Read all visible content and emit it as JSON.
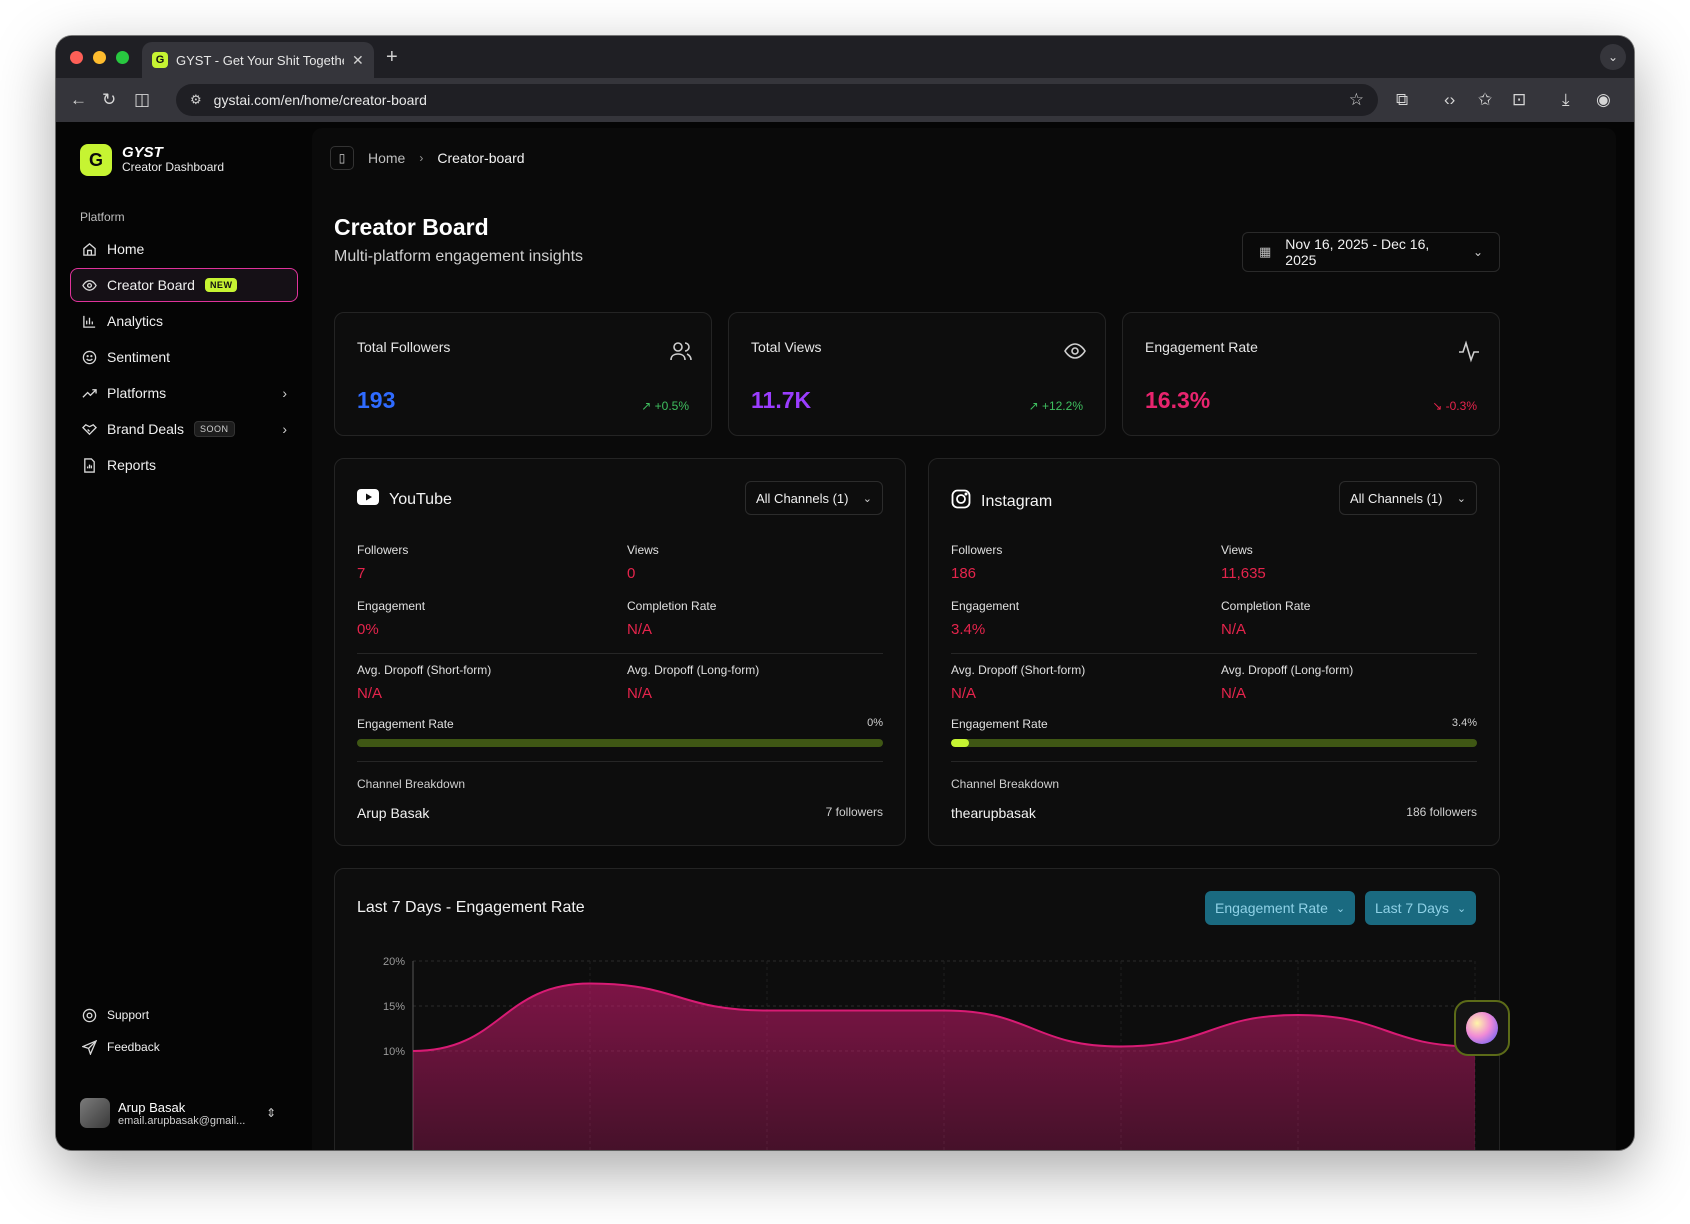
{
  "browser": {
    "tab_title": "GYST - Get Your Shit Togethe",
    "tab_favicon": "G",
    "url": "gystai.com/en/home/creator-board"
  },
  "sidebar": {
    "brand_name": "GYST",
    "brand_sub": "Creator Dashboard",
    "section_label": "Platform",
    "items": [
      {
        "label": "Home",
        "icon": "home-icon"
      },
      {
        "label": "Creator Board",
        "icon": "eye-icon",
        "badge": "NEW"
      },
      {
        "label": "Analytics",
        "icon": "bar-chart-icon"
      },
      {
        "label": "Sentiment",
        "icon": "smile-icon"
      },
      {
        "label": "Platforms",
        "icon": "trending-icon"
      },
      {
        "label": "Brand Deals",
        "icon": "handshake-icon",
        "badge": "SOON"
      },
      {
        "label": "Reports",
        "icon": "file-icon"
      }
    ],
    "bottom": [
      {
        "label": "Support",
        "icon": "lifebuoy-icon"
      },
      {
        "label": "Feedback",
        "icon": "send-icon"
      }
    ],
    "user": {
      "name": "Arup Basak",
      "email": "email.arupbasak@gmail..."
    }
  },
  "breadcrumb": {
    "home": "Home",
    "current": "Creator-board"
  },
  "header": {
    "title": "Creator Board",
    "subtitle": "Multi-platform engagement insights",
    "date_range": "Nov 16, 2025 - Dec 16, 2025"
  },
  "stats": [
    {
      "label": "Total Followers",
      "value": "193",
      "change": "+0.5%",
      "color": "#2f6bff",
      "change_color": "#3fbf5f"
    },
    {
      "label": "Total Views",
      "value": "11.7K",
      "change": "+12.2%",
      "color": "#9b3dff",
      "change_color": "#3fbf5f"
    },
    {
      "label": "Engagement Rate",
      "value": "16.3%",
      "change": "-0.3%",
      "color": "#e8246e",
      "change_color": "#e5244c"
    }
  ],
  "platforms": [
    {
      "name": "YouTube",
      "select": "All Channels (1)",
      "followers_label": "Followers",
      "followers": "7",
      "views_label": "Views",
      "views": "0",
      "engagement_label": "Engagement",
      "engagement": "0%",
      "completion_label": "Completion Rate",
      "completion": "N/A",
      "dropoff_short_label": "Avg. Dropoff (Short-form)",
      "dropoff_short": "N/A",
      "dropoff_long_label": "Avg. Dropoff (Long-form)",
      "dropoff_long": "N/A",
      "er_label": "Engagement Rate",
      "er_pct": "0%",
      "er_value": 0,
      "breakdown_label": "Channel Breakdown",
      "channel": "Arup Basak",
      "channel_followers": "7 followers"
    },
    {
      "name": "Instagram",
      "select": "All Channels (1)",
      "followers_label": "Followers",
      "followers": "186",
      "views_label": "Views",
      "views": "11,635",
      "engagement_label": "Engagement",
      "engagement": "3.4%",
      "completion_label": "Completion Rate",
      "completion": "N/A",
      "dropoff_short_label": "Avg. Dropoff (Short-form)",
      "dropoff_short": "N/A",
      "dropoff_long_label": "Avg. Dropoff (Long-form)",
      "dropoff_long": "N/A",
      "er_label": "Engagement Rate",
      "er_pct": "3.4%",
      "er_value": 3.4,
      "breakdown_label": "Channel Breakdown",
      "channel": "thearupbasak",
      "channel_followers": "186 followers"
    }
  ],
  "chart_section": {
    "title": "Last 7 Days - Engagement Rate",
    "metric_select": "Engagement Rate",
    "range_select": "Last 7 Days"
  },
  "chart_data": {
    "type": "area",
    "y_ticks": [
      "20%",
      "15%",
      "10%"
    ],
    "ylim": [
      0,
      20
    ],
    "values": [
      10,
      17.5,
      14.5,
      14.5,
      10.5,
      14,
      10.5
    ],
    "color": "#d81b74"
  }
}
